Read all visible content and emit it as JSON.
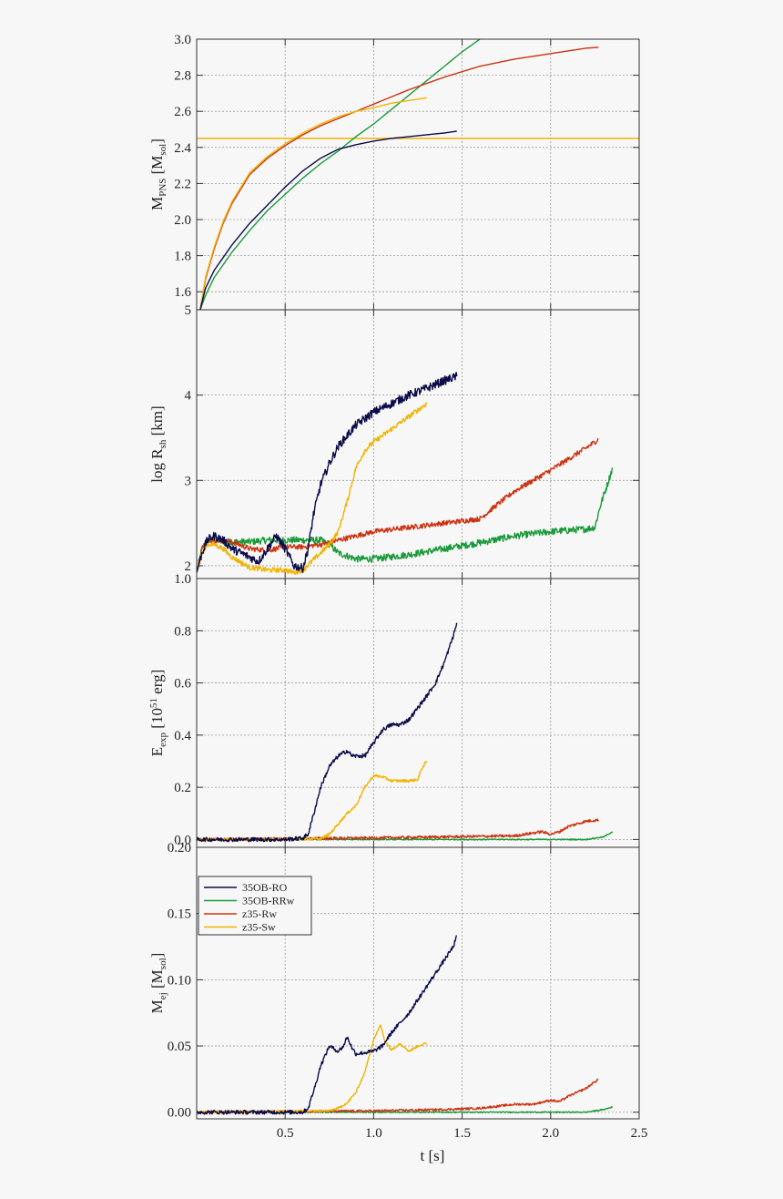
{
  "chart_data": [
    {
      "type": "line",
      "panel": "mpns",
      "ylabel_main": "M",
      "ylabel_sub": "PNS",
      "ylabel_rest": " [M",
      "ylabel_unit_sub": "sol",
      "ylabel_end": "]",
      "xlim": [
        0,
        2.5
      ],
      "ylim": [
        1.5,
        3.0
      ],
      "yticks": [
        "1.6",
        "1.8",
        "2.0",
        "2.2",
        "2.4",
        "2.6",
        "2.8",
        "3.0"
      ],
      "ytick_values": [
        1.6,
        1.8,
        2.0,
        2.2,
        2.4,
        2.6,
        2.8,
        3.0
      ],
      "grid": true,
      "hline": {
        "y": 2.45,
        "color": "#f2b300"
      },
      "series": [
        {
          "name": "35OB-RO",
          "color": "#0b0b4a",
          "x": [
            0.02,
            0.05,
            0.1,
            0.2,
            0.3,
            0.4,
            0.5,
            0.6,
            0.7,
            0.8,
            0.9,
            1.0,
            1.1,
            1.2,
            1.3,
            1.4,
            1.47
          ],
          "y": [
            1.5,
            1.62,
            1.72,
            1.86,
            1.98,
            2.08,
            2.18,
            2.27,
            2.34,
            2.39,
            2.415,
            2.435,
            2.45,
            2.46,
            2.47,
            2.48,
            2.49
          ]
        },
        {
          "name": "35OB-RRw",
          "color": "#1a9a3a",
          "x": [
            0.02,
            0.05,
            0.1,
            0.2,
            0.3,
            0.4,
            0.5,
            0.6,
            0.7,
            0.8,
            0.9,
            1.0,
            1.1,
            1.2,
            1.3,
            1.4,
            1.5,
            1.6,
            1.62
          ],
          "y": [
            1.5,
            1.58,
            1.68,
            1.82,
            1.94,
            2.05,
            2.14,
            2.23,
            2.31,
            2.38,
            2.46,
            2.53,
            2.61,
            2.69,
            2.77,
            2.85,
            2.93,
            3.0,
            3.01
          ]
        },
        {
          "name": "z35-Rw",
          "color": "#cc3311",
          "x": [
            0.02,
            0.05,
            0.1,
            0.15,
            0.2,
            0.3,
            0.4,
            0.5,
            0.6,
            0.7,
            0.8,
            1.0,
            1.2,
            1.4,
            1.6,
            1.8,
            2.0,
            2.2,
            2.27
          ],
          "y": [
            1.5,
            1.67,
            1.84,
            1.98,
            2.09,
            2.25,
            2.34,
            2.41,
            2.47,
            2.52,
            2.56,
            2.64,
            2.72,
            2.79,
            2.85,
            2.89,
            2.92,
            2.95,
            2.955
          ]
        },
        {
          "name": "z35-Sw",
          "color": "#f2b300",
          "x": [
            0.02,
            0.05,
            0.1,
            0.15,
            0.2,
            0.3,
            0.4,
            0.5,
            0.6,
            0.7,
            0.8,
            0.9,
            1.0,
            1.1,
            1.2,
            1.3
          ],
          "y": [
            1.5,
            1.68,
            1.85,
            1.99,
            2.1,
            2.26,
            2.35,
            2.42,
            2.48,
            2.53,
            2.57,
            2.6,
            2.62,
            2.645,
            2.66,
            2.675
          ]
        }
      ]
    },
    {
      "type": "line",
      "panel": "rsh",
      "ylabel_main": "log R",
      "ylabel_sub": "sh",
      "ylabel_rest": " [km]",
      "xlim": [
        0,
        2.5
      ],
      "ylim": [
        1.85,
        5.0
      ],
      "yticks": [
        "2",
        "3",
        "4",
        "5"
      ],
      "ytick_values": [
        2,
        3,
        4,
        5
      ],
      "grid": true,
      "series": [
        {
          "name": "35OB-RO",
          "color": "#0b0b4a",
          "x": [
            0.0,
            0.03,
            0.06,
            0.1,
            0.15,
            0.2,
            0.25,
            0.3,
            0.35,
            0.4,
            0.45,
            0.5,
            0.55,
            0.6,
            0.63,
            0.66,
            0.7,
            0.75,
            0.8,
            0.9,
            1.0,
            1.1,
            1.2,
            1.3,
            1.4,
            1.47
          ],
          "y": [
            1.92,
            2.15,
            2.3,
            2.35,
            2.3,
            2.2,
            2.15,
            2.1,
            2.05,
            2.2,
            2.35,
            2.2,
            2.0,
            1.97,
            2.2,
            2.6,
            2.95,
            3.2,
            3.4,
            3.65,
            3.8,
            3.9,
            4.0,
            4.08,
            4.17,
            4.22
          ],
          "noise": 0.05
        },
        {
          "name": "35OB-RRw",
          "color": "#1a9a3a",
          "x": [
            0.0,
            0.03,
            0.06,
            0.1,
            0.2,
            0.3,
            0.4,
            0.5,
            0.6,
            0.7,
            0.75,
            0.8,
            0.9,
            1.0,
            1.2,
            1.4,
            1.6,
            1.8,
            2.0,
            2.2,
            2.25,
            2.28,
            2.32,
            2.35
          ],
          "y": [
            1.92,
            2.2,
            2.3,
            2.3,
            2.28,
            2.28,
            2.3,
            2.3,
            2.3,
            2.3,
            2.25,
            2.15,
            2.08,
            2.08,
            2.13,
            2.2,
            2.27,
            2.35,
            2.4,
            2.43,
            2.45,
            2.7,
            2.95,
            3.15
          ],
          "noise": 0.04
        },
        {
          "name": "z35-Rw",
          "color": "#cc3311",
          "x": [
            0.0,
            0.03,
            0.06,
            0.1,
            0.2,
            0.3,
            0.4,
            0.5,
            0.6,
            0.7,
            0.8,
            0.9,
            1.0,
            1.2,
            1.4,
            1.6,
            1.7,
            1.8,
            1.9,
            2.0,
            2.1,
            2.2,
            2.27
          ],
          "y": [
            1.92,
            2.2,
            2.3,
            2.3,
            2.28,
            2.2,
            2.18,
            2.22,
            2.22,
            2.25,
            2.3,
            2.35,
            2.4,
            2.45,
            2.5,
            2.55,
            2.72,
            2.88,
            3.0,
            3.12,
            3.25,
            3.38,
            3.48
          ],
          "noise": 0.03
        },
        {
          "name": "z35-Sw",
          "color": "#f2b300",
          "x": [
            0.0,
            0.03,
            0.06,
            0.1,
            0.15,
            0.2,
            0.3,
            0.4,
            0.5,
            0.55,
            0.6,
            0.65,
            0.7,
            0.75,
            0.8,
            0.85,
            0.9,
            0.95,
            1.0,
            1.1,
            1.2,
            1.3
          ],
          "y": [
            1.92,
            2.15,
            2.25,
            2.25,
            2.2,
            2.1,
            1.98,
            1.95,
            1.95,
            1.92,
            1.95,
            2.05,
            2.15,
            2.25,
            2.4,
            2.75,
            3.15,
            3.35,
            3.45,
            3.6,
            3.75,
            3.9
          ],
          "noise": 0.03
        }
      ]
    },
    {
      "type": "line",
      "panel": "eexp",
      "ylabel_main": "E",
      "ylabel_sub": "exp",
      "ylabel_rest": " [10",
      "ylabel_sup": "51",
      "ylabel_end": " erg]",
      "xlim": [
        0,
        2.5
      ],
      "ylim": [
        -0.03,
        1.0
      ],
      "yticks": [
        "0.0",
        "0.2",
        "0.4",
        "0.6",
        "0.8",
        "1.0"
      ],
      "ytick_values": [
        0.0,
        0.2,
        0.4,
        0.6,
        0.8,
        1.0
      ],
      "grid": true,
      "series": [
        {
          "name": "35OB-RO",
          "color": "#0b0b4a",
          "x": [
            0.0,
            0.5,
            0.6,
            0.63,
            0.67,
            0.7,
            0.75,
            0.8,
            0.85,
            0.88,
            0.95,
            1.0,
            1.05,
            1.1,
            1.15,
            1.2,
            1.3,
            1.35,
            1.4,
            1.45,
            1.47
          ],
          "y": [
            0.0,
            0.0,
            0.005,
            0.02,
            0.12,
            0.2,
            0.28,
            0.32,
            0.34,
            0.32,
            0.32,
            0.37,
            0.42,
            0.44,
            0.44,
            0.46,
            0.55,
            0.6,
            0.68,
            0.78,
            0.83
          ],
          "noise": 0.008
        },
        {
          "name": "35OB-RRw",
          "color": "#1a9a3a",
          "x": [
            0.0,
            0.5,
            1.0,
            1.5,
            2.0,
            2.2,
            2.3,
            2.35
          ],
          "y": [
            0.0,
            0.0,
            0.0,
            0.0,
            0.0,
            0.0,
            0.01,
            0.03
          ],
          "noise": 0.002
        },
        {
          "name": "z35-Rw",
          "color": "#cc3311",
          "x": [
            0.0,
            0.5,
            0.8,
            1.0,
            1.2,
            1.4,
            1.6,
            1.8,
            1.95,
            2.0,
            2.05,
            2.1,
            2.2,
            2.27
          ],
          "y": [
            0.0,
            0.003,
            0.005,
            0.006,
            0.008,
            0.01,
            0.012,
            0.014,
            0.03,
            0.02,
            0.03,
            0.05,
            0.07,
            0.075
          ],
          "noise": 0.005
        },
        {
          "name": "z35-Sw",
          "color": "#f2b300",
          "x": [
            0.0,
            0.7,
            0.75,
            0.8,
            0.85,
            0.9,
            0.95,
            1.0,
            1.05,
            1.1,
            1.15,
            1.2,
            1.25,
            1.27,
            1.3
          ],
          "y": [
            0.0,
            0.002,
            0.02,
            0.06,
            0.1,
            0.13,
            0.2,
            0.245,
            0.24,
            0.225,
            0.225,
            0.225,
            0.23,
            0.27,
            0.3
          ],
          "noise": 0.005
        }
      ]
    },
    {
      "type": "line",
      "panel": "mej",
      "ylabel_main": "M",
      "ylabel_sub": "ej",
      "ylabel_rest": " [M",
      "ylabel_unit_sub": "sol",
      "ylabel_end": "]",
      "xlabel": "t [s]",
      "xlim": [
        0,
        2.5
      ],
      "ylim": [
        -0.005,
        0.2
      ],
      "xticks": [
        "0.5",
        "1.0",
        "1.5",
        "2.0",
        "2.5"
      ],
      "xtick_values": [
        0.5,
        1.0,
        1.5,
        2.0,
        2.5
      ],
      "yticks": [
        "0.00",
        "0.05",
        "0.10",
        "0.15",
        "0.20"
      ],
      "ytick_values": [
        0.0,
        0.05,
        0.1,
        0.15,
        0.2
      ],
      "grid": true,
      "legend": {
        "position": "top-left"
      },
      "series": [
        {
          "name": "35OB-RO",
          "color": "#0b0b4a",
          "x": [
            0.0,
            0.6,
            0.63,
            0.67,
            0.7,
            0.75,
            0.8,
            0.83,
            0.85,
            0.88,
            0.9,
            0.95,
            1.0,
            1.05,
            1.1,
            1.2,
            1.3,
            1.35,
            1.4,
            1.45,
            1.47
          ],
          "y": [
            0.0,
            0.0,
            0.003,
            0.02,
            0.035,
            0.05,
            0.046,
            0.05,
            0.057,
            0.048,
            0.044,
            0.045,
            0.046,
            0.05,
            0.06,
            0.075,
            0.095,
            0.105,
            0.115,
            0.125,
            0.133
          ],
          "noise": 0.0015
        },
        {
          "name": "35OB-RRw",
          "color": "#1a9a3a",
          "x": [
            0.0,
            0.5,
            1.0,
            1.5,
            2.0,
            2.2,
            2.3,
            2.35
          ],
          "y": [
            0.0,
            0.0,
            0.0,
            0.0,
            0.0,
            0.0,
            0.002,
            0.004
          ],
          "noise": 0.0004
        },
        {
          "name": "z35-Rw",
          "color": "#cc3311",
          "x": [
            0.0,
            0.5,
            0.8,
            1.0,
            1.2,
            1.4,
            1.6,
            1.8,
            1.9,
            2.0,
            2.05,
            2.1,
            2.2,
            2.27
          ],
          "y": [
            0.0,
            0.0005,
            0.0008,
            0.001,
            0.0015,
            0.002,
            0.003,
            0.006,
            0.006,
            0.009,
            0.008,
            0.012,
            0.018,
            0.025
          ],
          "noise": 0.0008
        },
        {
          "name": "z35-Sw",
          "color": "#f2b300",
          "x": [
            0.0,
            0.75,
            0.8,
            0.85,
            0.9,
            0.95,
            1.0,
            1.04,
            1.06,
            1.1,
            1.15,
            1.2,
            1.25,
            1.3
          ],
          "y": [
            0.0,
            0.001,
            0.003,
            0.007,
            0.015,
            0.03,
            0.055,
            0.066,
            0.055,
            0.047,
            0.052,
            0.046,
            0.05,
            0.052
          ],
          "noise": 0.0008
        }
      ]
    }
  ]
}
